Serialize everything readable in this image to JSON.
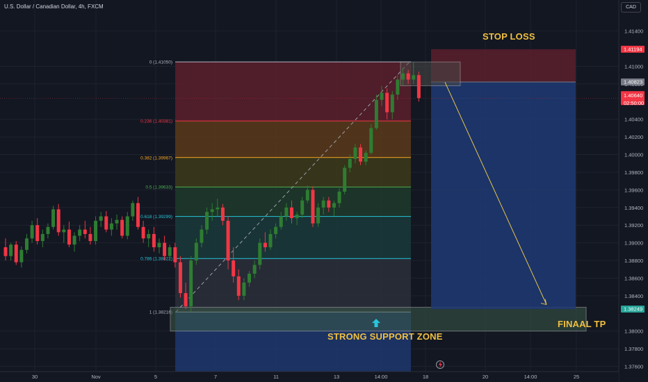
{
  "header": {
    "title": "U.S. Dollar / Canadian Dollar, 4h, FXCM",
    "currency_button": "CAD"
  },
  "annotations": {
    "stop_loss": "STOP LOSS",
    "final_tp": "FINAAL TP",
    "support": "STRONG SUPPORT ZONE"
  },
  "colors": {
    "bg": "#131722",
    "grid": "#1e222d",
    "up": "#2e7d32",
    "down": "#f23645",
    "annotation": "#f0c040",
    "stop_zone": "#5c1f2b",
    "target_zone": "#1e3a73",
    "arrow": "#e8c54d",
    "support_zone_border": "#b7b7b7"
  },
  "chart_data": {
    "type": "candlestick",
    "symbol": "USDCAD",
    "timeframe": "4h",
    "source": "FXCM",
    "y_axis": {
      "range": [
        1.376,
        1.4155
      ],
      "ticks": [
        "1.41400",
        "1.41000",
        "1.40800",
        "1.40400",
        "1.40200",
        "1.40000",
        "1.39800",
        "1.39600",
        "1.39400",
        "1.39200",
        "1.39000",
        "1.38800",
        "1.38600",
        "1.38400",
        "1.38000",
        "1.37800",
        "1.37600"
      ]
    },
    "x_axis": {
      "ticks": [
        "30",
        "Nov",
        "5",
        "7",
        "11",
        "13",
        "14:00",
        "18",
        "20",
        "14:00",
        "25"
      ]
    },
    "price_labels": {
      "stop": "1.41194",
      "entry": "1.40823",
      "current": "1.40640",
      "countdown": "02:50:00",
      "target": "1.38249"
    },
    "fibonacci": [
      {
        "level": 0,
        "price": 1.4105,
        "label": "0 (1.41050)",
        "color": "#b2b5be"
      },
      {
        "level": 0.236,
        "price": 1.40381,
        "label": "0.236 (1.40381)",
        "color": "#f23645"
      },
      {
        "level": 0.382,
        "price": 1.39967,
        "label": "0.382 (1.39967)",
        "color": "#f5a623"
      },
      {
        "level": 0.5,
        "price": 1.39633,
        "label": "0.5 (1.39633)",
        "color": "#4caf50"
      },
      {
        "level": 0.618,
        "price": 1.39299,
        "label": "0.618 (1.39299)",
        "color": "#26c6da"
      },
      {
        "level": 0.786,
        "price": 1.38822,
        "label": "0.786 (1.38822)",
        "color": "#26c6da"
      },
      {
        "level": 1,
        "price": 1.38216,
        "label": "1 (1.38216)",
        "color": "#b2b5be"
      }
    ],
    "candles": [
      [
        1.3895,
        1.3905,
        1.388,
        1.3885
      ],
      [
        1.3885,
        1.39,
        1.388,
        1.3898
      ],
      [
        1.3898,
        1.3902,
        1.3875,
        1.3878
      ],
      [
        1.3878,
        1.3896,
        1.3872,
        1.3892
      ],
      [
        1.3892,
        1.391,
        1.3888,
        1.3905
      ],
      [
        1.3905,
        1.3925,
        1.39,
        1.392
      ],
      [
        1.392,
        1.3928,
        1.3898,
        1.3902
      ],
      [
        1.3902,
        1.3915,
        1.3895,
        1.391
      ],
      [
        1.391,
        1.3922,
        1.3905,
        1.3918
      ],
      [
        1.3918,
        1.3942,
        1.3915,
        1.3938
      ],
      [
        1.3938,
        1.3944,
        1.3908,
        1.3912
      ],
      [
        1.3912,
        1.392,
        1.39,
        1.3915
      ],
      [
        1.3915,
        1.3924,
        1.3895,
        1.3898
      ],
      [
        1.3898,
        1.3912,
        1.389,
        1.3908
      ],
      [
        1.3908,
        1.392,
        1.3902,
        1.3915
      ],
      [
        1.3915,
        1.3925,
        1.3905,
        1.391
      ],
      [
        1.391,
        1.3918,
        1.3898,
        1.3902
      ],
      [
        1.3902,
        1.393,
        1.3898,
        1.3925
      ],
      [
        1.3925,
        1.3935,
        1.3918,
        1.393
      ],
      [
        1.393,
        1.3936,
        1.3912,
        1.3915
      ],
      [
        1.3915,
        1.3928,
        1.3908,
        1.3922
      ],
      [
        1.3922,
        1.3932,
        1.3915,
        1.3926
      ],
      [
        1.3926,
        1.393,
        1.3905,
        1.3908
      ],
      [
        1.3908,
        1.3935,
        1.3904,
        1.393
      ],
      [
        1.393,
        1.3948,
        1.3925,
        1.3945
      ],
      [
        1.3945,
        1.3952,
        1.3915,
        1.3918
      ],
      [
        1.3918,
        1.3925,
        1.39,
        1.3905
      ],
      [
        1.3905,
        1.3915,
        1.3895,
        1.391
      ],
      [
        1.391,
        1.3918,
        1.389,
        1.3895
      ],
      [
        1.3895,
        1.3905,
        1.3888,
        1.39
      ],
      [
        1.39,
        1.3908,
        1.388,
        1.3885
      ],
      [
        1.3885,
        1.3898,
        1.388,
        1.3895
      ],
      [
        1.3895,
        1.39,
        1.3872,
        1.3878
      ],
      [
        1.3878,
        1.3885,
        1.3838,
        1.3843
      ],
      [
        1.3843,
        1.3855,
        1.3825,
        1.3828
      ],
      [
        1.3828,
        1.3885,
        1.3822,
        1.388
      ],
      [
        1.388,
        1.3905,
        1.3875,
        1.39
      ],
      [
        1.39,
        1.392,
        1.3895,
        1.3915
      ],
      [
        1.3915,
        1.394,
        1.391,
        1.3935
      ],
      [
        1.3935,
        1.3945,
        1.3925,
        1.3938
      ],
      [
        1.3938,
        1.395,
        1.393,
        1.394
      ],
      [
        1.394,
        1.3944,
        1.392,
        1.3925
      ],
      [
        1.3925,
        1.393,
        1.387,
        1.388
      ],
      [
        1.388,
        1.3895,
        1.3855,
        1.3862
      ],
      [
        1.3862,
        1.387,
        1.3835,
        1.384
      ],
      [
        1.384,
        1.386,
        1.3835,
        1.3855
      ],
      [
        1.3855,
        1.3868,
        1.385,
        1.3865
      ],
      [
        1.3865,
        1.388,
        1.386,
        1.3875
      ],
      [
        1.3875,
        1.3905,
        1.387,
        1.39
      ],
      [
        1.39,
        1.3912,
        1.389,
        1.3895
      ],
      [
        1.3895,
        1.3915,
        1.3892,
        1.391
      ],
      [
        1.391,
        1.3922,
        1.3905,
        1.3918
      ],
      [
        1.3918,
        1.3935,
        1.3915,
        1.393
      ],
      [
        1.393,
        1.3945,
        1.3925,
        1.394
      ],
      [
        1.394,
        1.3948,
        1.3922,
        1.3928
      ],
      [
        1.3928,
        1.3935,
        1.392,
        1.3932
      ],
      [
        1.3932,
        1.3952,
        1.3928,
        1.3948
      ],
      [
        1.3948,
        1.3965,
        1.3945,
        1.396
      ],
      [
        1.396,
        1.3964,
        1.3918,
        1.3922
      ],
      [
        1.3922,
        1.3945,
        1.3918,
        1.394
      ],
      [
        1.394,
        1.3952,
        1.3932,
        1.3948
      ],
      [
        1.3948,
        1.3952,
        1.3935,
        1.394
      ],
      [
        1.394,
        1.3948,
        1.393,
        1.3945
      ],
      [
        1.3945,
        1.3962,
        1.394,
        1.3958
      ],
      [
        1.3958,
        1.3988,
        1.3955,
        1.3985
      ],
      [
        1.3985,
        1.4,
        1.398,
        1.3995
      ],
      [
        1.3995,
        1.4012,
        1.399,
        1.4008
      ],
      [
        1.4008,
        1.4012,
        1.3988,
        1.3992
      ],
      [
        1.3992,
        1.4005,
        1.3988,
        1.4002
      ],
      [
        1.4002,
        1.4035,
        1.4,
        1.403
      ],
      [
        1.403,
        1.4068,
        1.4028,
        1.4062
      ],
      [
        1.4062,
        1.4078,
        1.4055,
        1.407
      ],
      [
        1.407,
        1.4075,
        1.404,
        1.4048
      ],
      [
        1.4048,
        1.4072,
        1.404,
        1.4068
      ],
      [
        1.4068,
        1.409,
        1.4062,
        1.4085
      ],
      [
        1.4085,
        1.4098,
        1.4078,
        1.4092
      ],
      [
        1.4092,
        1.4096,
        1.408,
        1.4085
      ],
      [
        1.4085,
        1.4105,
        1.408,
        1.409
      ],
      [
        1.409,
        1.4094,
        1.406,
        1.4064
      ]
    ]
  }
}
